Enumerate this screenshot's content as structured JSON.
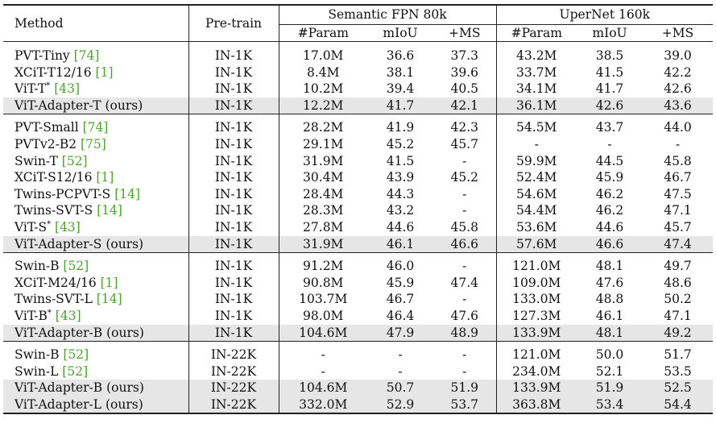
{
  "header": {
    "method": "Method",
    "pretrain": "Pre-train",
    "group1": "Semantic FPN 80k",
    "group2": "UperNet 160k",
    "sub": [
      "#Param",
      "mIoU",
      "+MS",
      "#Param",
      "mIoU",
      "+MS"
    ]
  },
  "groups": [
    [
      {
        "name": "PVT-Tiny ",
        "cite": "[74]",
        "sup": "",
        "pre": "IN-1K",
        "v": [
          "17.0M",
          "36.6",
          "37.3",
          "43.2M",
          "38.5",
          "39.0"
        ],
        "hl": false
      },
      {
        "name": "XCiT-T12/16 ",
        "cite": "[1]",
        "sup": "",
        "pre": "IN-1K",
        "v": [
          "8.4M",
          "38.1",
          "39.6",
          "33.7M",
          "41.5",
          "42.2"
        ],
        "hl": false
      },
      {
        "name": "ViT-T",
        "cite": "[43]",
        "sup": "*",
        "pre": "IN-1K",
        "v": [
          "10.2M",
          "39.4",
          "40.5",
          "34.1M",
          "41.7",
          "42.6"
        ],
        "hl": false
      },
      {
        "name": "ViT-Adapter-T (ours)",
        "cite": "",
        "sup": "",
        "pre": "IN-1K",
        "v": [
          "12.2M",
          "41.7",
          "42.1",
          "36.1M",
          "42.6",
          "43.6"
        ],
        "hl": true
      }
    ],
    [
      {
        "name": "PVT-Small ",
        "cite": "[74]",
        "sup": "",
        "pre": "IN-1K",
        "v": [
          "28.2M",
          "41.9",
          "42.3",
          "54.5M",
          "43.7",
          "44.0"
        ],
        "hl": false
      },
      {
        "name": "PVTv2-B2 ",
        "cite": "[75]",
        "sup": "",
        "pre": "IN-1K",
        "v": [
          "29.1M",
          "45.2",
          "45.7",
          "-",
          "-",
          "-"
        ],
        "hl": false
      },
      {
        "name": "Swin-T ",
        "cite": "[52]",
        "sup": "",
        "pre": "IN-1K",
        "v": [
          "31.9M",
          "41.5",
          "-",
          "59.9M",
          "44.5",
          "45.8"
        ],
        "hl": false
      },
      {
        "name": "XCiT-S12/16 ",
        "cite": "[1]",
        "sup": "",
        "pre": "IN-1K",
        "v": [
          "30.4M",
          "43.9",
          "45.2",
          "52.4M",
          "45.9",
          "46.7"
        ],
        "hl": false
      },
      {
        "name": "Twins-PCPVT-S ",
        "cite": "[14]",
        "sup": "",
        "pre": "IN-1K",
        "v": [
          "28.4M",
          "44.3",
          "-",
          "54.6M",
          "46.2",
          "47.5"
        ],
        "hl": false
      },
      {
        "name": "Twins-SVT-S ",
        "cite": "[14]",
        "sup": "",
        "pre": "IN-1K",
        "v": [
          "28.3M",
          "43.2",
          "-",
          "54.4M",
          "46.2",
          "47.1"
        ],
        "hl": false
      },
      {
        "name": "ViT-S",
        "cite": "[43]",
        "sup": "*",
        "pre": "IN-1K",
        "v": [
          "27.8M",
          "44.6",
          "45.8",
          "53.6M",
          "44.6",
          "45.7"
        ],
        "hl": false
      },
      {
        "name": "ViT-Adapter-S (ours)",
        "cite": "",
        "sup": "",
        "pre": "IN-1K",
        "v": [
          "31.9M",
          "46.1",
          "46.6",
          "57.6M",
          "46.6",
          "47.4"
        ],
        "hl": true
      }
    ],
    [
      {
        "name": "Swin-B ",
        "cite": "[52]",
        "sup": "",
        "pre": "IN-1K",
        "v": [
          "91.2M",
          "46.0",
          "-",
          "121.0M",
          "48.1",
          "49.7"
        ],
        "hl": false
      },
      {
        "name": "XCiT-M24/16 ",
        "cite": "[1]",
        "sup": "",
        "pre": "IN-1K",
        "v": [
          "90.8M",
          "45.9",
          "47.4",
          "109.0M",
          "47.6",
          "48.6"
        ],
        "hl": false
      },
      {
        "name": "Twins-SVT-L ",
        "cite": "[14]",
        "sup": "",
        "pre": "IN-1K",
        "v": [
          "103.7M",
          "46.7",
          "-",
          "133.0M",
          "48.8",
          "50.2"
        ],
        "hl": false
      },
      {
        "name": "ViT-B",
        "cite": "[43]",
        "sup": "*",
        "pre": "IN-1K",
        "v": [
          "98.0M",
          "46.4",
          "47.6",
          "127.3M",
          "46.1",
          "47.1"
        ],
        "hl": false
      },
      {
        "name": "ViT-Adapter-B (ours)",
        "cite": "",
        "sup": "",
        "pre": "IN-1K",
        "v": [
          "104.6M",
          "47.9",
          "48.9",
          "133.9M",
          "48.1",
          "49.2"
        ],
        "hl": true
      }
    ],
    [
      {
        "name": "Swin-B ",
        "cite": "[52]",
        "sup": "",
        "pre": "IN-22K",
        "v": [
          "-",
          "-",
          "-",
          "121.0M",
          "50.0",
          "51.7"
        ],
        "hl": false
      },
      {
        "name": "Swin-L ",
        "cite": "[52]",
        "sup": "",
        "pre": "IN-22K",
        "v": [
          "-",
          "-",
          "-",
          "234.0M",
          "52.1",
          "53.5"
        ],
        "hl": false
      },
      {
        "name": "ViT-Adapter-B (ours)",
        "cite": "",
        "sup": "",
        "pre": "IN-22K",
        "v": [
          "104.6M",
          "50.7",
          "51.9",
          "133.9M",
          "51.9",
          "52.5"
        ],
        "hl": true
      },
      {
        "name": "ViT-Adapter-L (ours)",
        "cite": "",
        "sup": "",
        "pre": "IN-22K",
        "v": [
          "332.0M",
          "52.9",
          "53.7",
          "363.8M",
          "53.4",
          "54.4"
        ],
        "hl": true
      }
    ]
  ]
}
